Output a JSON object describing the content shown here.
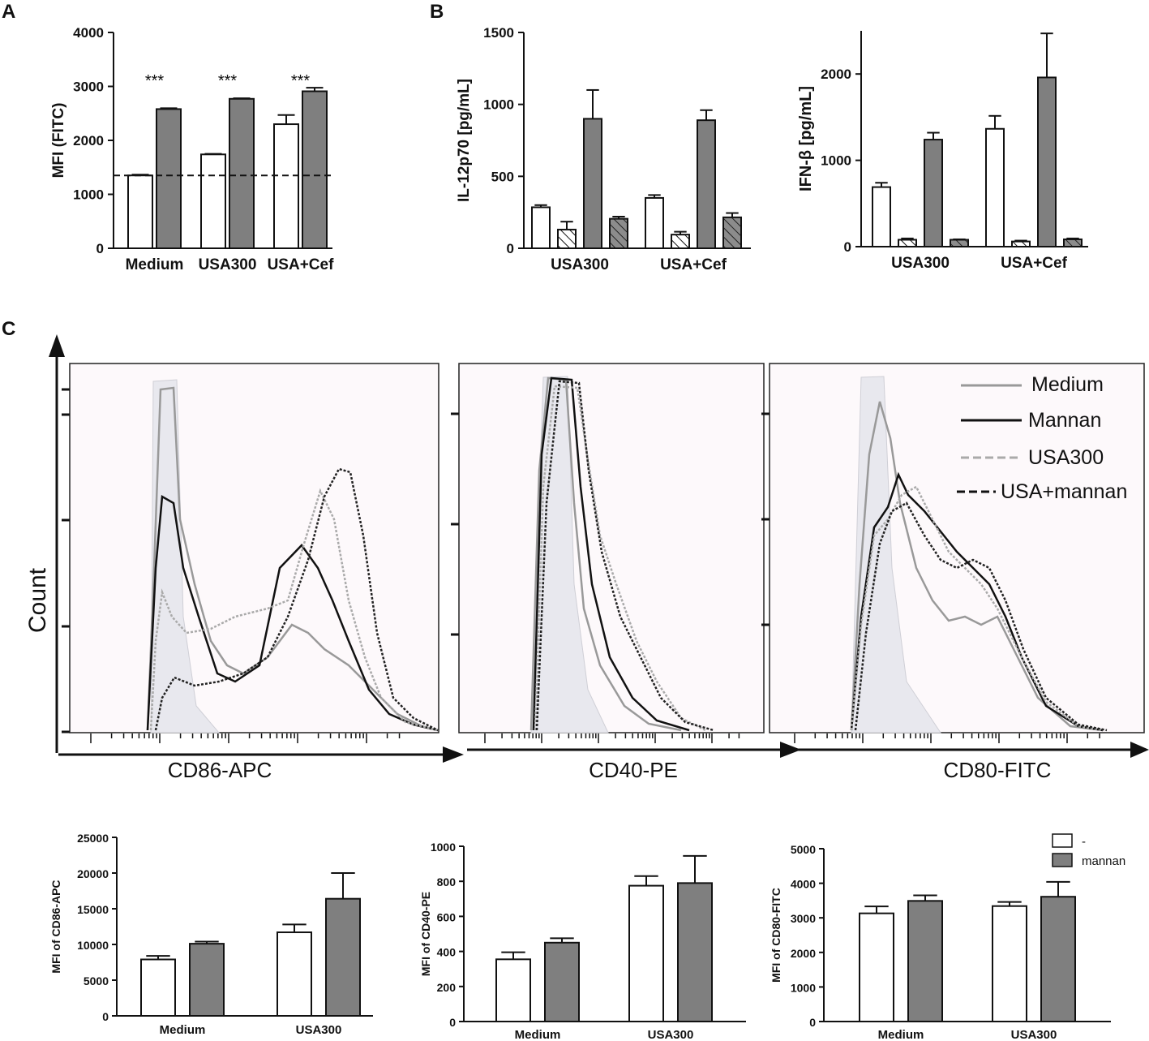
{
  "panels": {
    "a": "A",
    "b": "B",
    "c": "C"
  },
  "colors": {
    "white_bar": "#ffffff",
    "gray_bar": "#7f7f7f",
    "outline": "#111111",
    "hist_bg": "#fdf9fb",
    "shade": "#e9e9ee"
  },
  "chart_data": [
    {
      "id": "a",
      "type": "bar",
      "title": "",
      "ylabel": "MFI (FITC)",
      "xlabel": "",
      "ylim": [
        0,
        4000
      ],
      "yticks": [
        0,
        1000,
        2000,
        3000,
        4000
      ],
      "categories": [
        "Medium",
        "USA300",
        "USA+Cef"
      ],
      "series": [
        {
          "name": "-",
          "fill": "white",
          "values": [
            1350,
            1740,
            2300
          ],
          "errors": [
            15,
            10,
            170
          ]
        },
        {
          "name": "mannan",
          "fill": "gray",
          "values": [
            2580,
            2770,
            2910
          ],
          "errors": [
            15,
            10,
            65
          ]
        }
      ],
      "reference_line": 1350,
      "annotations": [
        "***",
        "***",
        "***"
      ]
    },
    {
      "id": "b1",
      "type": "bar",
      "title": "",
      "ylabel": "IL-12p70 [pg/mL]",
      "xlabel": "",
      "ylim": [
        0,
        1500
      ],
      "yticks": [
        0,
        500,
        1000,
        1500
      ],
      "categories": [
        "USA300",
        "USA+Cef"
      ],
      "series": [
        {
          "name": "-",
          "fill": "white",
          "values": [
            285,
            350
          ],
          "errors": [
            15,
            20
          ]
        },
        {
          "name": "hatched white",
          "fill": "hatch-white",
          "values": [
            130,
            95
          ],
          "errors": [
            55,
            20
          ]
        },
        {
          "name": "gray",
          "fill": "gray",
          "values": [
            900,
            890
          ],
          "errors": [
            200,
            70
          ]
        },
        {
          "name": "hatched gray",
          "fill": "hatch-gray",
          "values": [
            205,
            215
          ],
          "errors": [
            15,
            30
          ]
        }
      ]
    },
    {
      "id": "b2",
      "type": "bar",
      "title": "",
      "ylabel": "IFN-β [pg/mL]",
      "xlabel": "",
      "ylim": [
        0,
        2500
      ],
      "yticks": [
        0,
        1000,
        2000
      ],
      "categories": [
        "USA300",
        "USA+Cef"
      ],
      "series": [
        {
          "name": "-",
          "fill": "white",
          "values": [
            690,
            1365
          ],
          "errors": [
            50,
            150
          ]
        },
        {
          "name": "hatched white",
          "fill": "hatch-white",
          "values": [
            80,
            60
          ],
          "errors": [
            15,
            10
          ]
        },
        {
          "name": "gray",
          "fill": "gray",
          "values": [
            1240,
            1960
          ],
          "errors": [
            80,
            510
          ]
        },
        {
          "name": "hatched gray",
          "fill": "hatch-gray",
          "values": [
            80,
            85
          ],
          "errors": [
            5,
            10
          ]
        }
      ]
    },
    {
      "id": "c_hist",
      "type": "line",
      "title": "",
      "ylabel": "Count",
      "xlabels": [
        "CD86-APC",
        "CD40-PE",
        "CD80-FITC"
      ],
      "legend": [
        "Medium",
        "Mannan",
        "USA300",
        "USA+mannan"
      ],
      "legend_position": "top-right",
      "note": "flow cytometry histograms, log-scale fluorescence, arbitrary units"
    },
    {
      "id": "c1",
      "type": "bar",
      "title": "",
      "ylabel": "MFI of CD86-APC",
      "xlabel": "",
      "ylim": [
        0,
        25000
      ],
      "yticks": [
        0,
        5000,
        10000,
        15000,
        20000,
        25000
      ],
      "categories": [
        "Medium",
        "USA300"
      ],
      "series": [
        {
          "name": "-",
          "fill": "white",
          "values": [
            7900,
            11700
          ],
          "errors": [
            500,
            1100
          ]
        },
        {
          "name": "mannan",
          "fill": "gray",
          "values": [
            10100,
            16400
          ],
          "errors": [
            300,
            3600
          ]
        }
      ]
    },
    {
      "id": "c2",
      "type": "bar",
      "title": "",
      "ylabel": "MFI of CD40-PE",
      "xlabel": "",
      "ylim": [
        0,
        1000
      ],
      "yticks": [
        0,
        200,
        400,
        600,
        800,
        1000
      ],
      "categories": [
        "Medium",
        "USA300"
      ],
      "series": [
        {
          "name": "-",
          "fill": "white",
          "values": [
            355,
            775
          ],
          "errors": [
            40,
            55
          ]
        },
        {
          "name": "mannan",
          "fill": "gray",
          "values": [
            450,
            790
          ],
          "errors": [
            25,
            155
          ]
        }
      ]
    },
    {
      "id": "c3",
      "type": "bar",
      "title": "",
      "ylabel": "MFI of CD80-FITC",
      "xlabel": "",
      "ylim": [
        0,
        5000
      ],
      "yticks": [
        0,
        1000,
        2000,
        3000,
        4000,
        5000
      ],
      "categories": [
        "Medium",
        "USA300"
      ],
      "series": [
        {
          "name": "-",
          "fill": "white",
          "values": [
            3130,
            3340
          ],
          "errors": [
            200,
            120
          ]
        },
        {
          "name": "mannan",
          "fill": "gray",
          "values": [
            3490,
            3610
          ],
          "errors": [
            160,
            430
          ]
        }
      ],
      "legend": [
        "-",
        "mannan"
      ],
      "legend_position": "top-right"
    }
  ]
}
